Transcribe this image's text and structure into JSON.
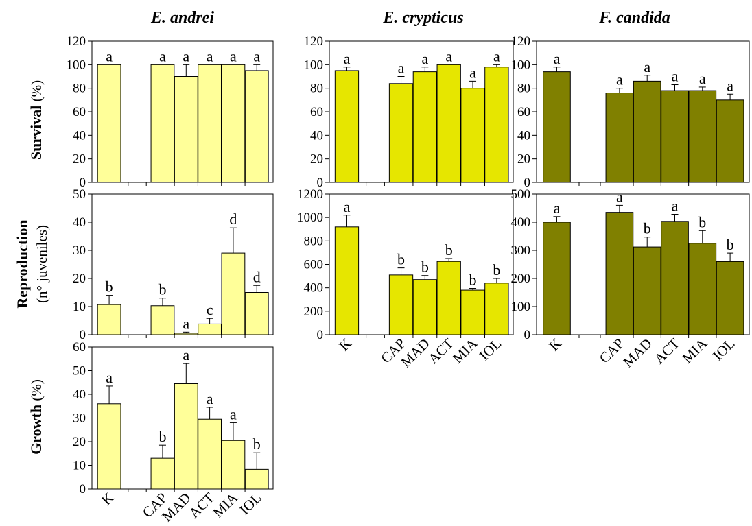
{
  "column_titles": [
    "E. andrei",
    "E. crypticus",
    "F. candida"
  ],
  "row_labels": {
    "survival": {
      "bold": "Survival",
      "normal": " (%)"
    },
    "reproduction": {
      "bold": "Reproduction",
      "normal": "(n° juveniles)"
    },
    "growth": {
      "bold": "Growth",
      "normal": " (%)"
    }
  },
  "chart_data": [
    {
      "id": "andrei-survival",
      "type": "bar",
      "organism": "E. andrei",
      "endpoint": "Survival",
      "categories": [
        "K",
        "CAP",
        "MAD",
        "ACT",
        "MIA",
        "IOL"
      ],
      "values": [
        100,
        100,
        90,
        100,
        100,
        95
      ],
      "errors": [
        0,
        0,
        10,
        0,
        0,
        5
      ],
      "letters": [
        "a",
        "a",
        "a",
        "a",
        "a",
        "a"
      ],
      "ylim": [
        0,
        120
      ],
      "yticks": [
        0,
        20,
        40,
        60,
        80,
        100,
        120
      ],
      "color": "#ffff99"
    },
    {
      "id": "crypticus-survival",
      "type": "bar",
      "organism": "E. crypticus",
      "endpoint": "Survival",
      "categories": [
        "K",
        "CAP",
        "MAD",
        "ACT",
        "MIA",
        "IOL"
      ],
      "values": [
        95,
        84,
        94,
        100,
        80,
        98
      ],
      "errors": [
        3,
        6,
        4,
        0,
        6,
        2
      ],
      "letters": [
        "a",
        "a",
        "a",
        "a",
        "a",
        "a"
      ],
      "ylim": [
        0,
        120
      ],
      "yticks": [
        0,
        20,
        40,
        60,
        80,
        100,
        120
      ],
      "color": "#e6e600"
    },
    {
      "id": "candida-survival",
      "type": "bar",
      "organism": "F. candida",
      "endpoint": "Survival",
      "categories": [
        "K",
        "CAP",
        "MAD",
        "ACT",
        "MIA",
        "IOL"
      ],
      "values": [
        94,
        76,
        86,
        78,
        78,
        70
      ],
      "errors": [
        4,
        4,
        5,
        5,
        3,
        5
      ],
      "letters": [
        "a",
        "a",
        "a",
        "a",
        "a",
        "a"
      ],
      "ylim": [
        0,
        120
      ],
      "yticks": [
        0,
        20,
        40,
        60,
        80,
        100,
        120
      ],
      "color": "#808000"
    },
    {
      "id": "andrei-reproduction",
      "type": "bar",
      "organism": "E. andrei",
      "endpoint": "Reproduction",
      "categories": [
        "K",
        "CAP",
        "MAD",
        "ACT",
        "MIA",
        "IOL"
      ],
      "values": [
        10.7,
        10.3,
        0.5,
        3.8,
        29,
        15
      ],
      "errors": [
        3.3,
        2.7,
        0.4,
        2,
        9,
        2.5
      ],
      "letters": [
        "b",
        "b",
        "a",
        "c",
        "d",
        "d"
      ],
      "ylim": [
        0,
        50
      ],
      "yticks": [
        0,
        10,
        20,
        30,
        40,
        50
      ],
      "color": "#ffff99"
    },
    {
      "id": "crypticus-reproduction",
      "type": "bar",
      "organism": "E. crypticus",
      "endpoint": "Reproduction",
      "categories": [
        "K",
        "CAP",
        "MAD",
        "ACT",
        "MIA",
        "IOL"
      ],
      "values": [
        920,
        510,
        470,
        625,
        380,
        440
      ],
      "errors": [
        100,
        60,
        35,
        25,
        15,
        40
      ],
      "letters": [
        "a",
        "b",
        "b",
        "b",
        "b",
        "b"
      ],
      "ylim": [
        0,
        1200
      ],
      "yticks": [
        0,
        200,
        400,
        600,
        800,
        1000,
        1200
      ],
      "color": "#e6e600"
    },
    {
      "id": "candida-reproduction",
      "type": "bar",
      "organism": "F. candida",
      "endpoint": "Reproduction",
      "categories": [
        "K",
        "CAP",
        "MAD",
        "ACT",
        "MIA",
        "IOL"
      ],
      "values": [
        400,
        435,
        312,
        403,
        325,
        260
      ],
      "errors": [
        20,
        25,
        35,
        25,
        45,
        30
      ],
      "letters": [
        "a",
        "a",
        "b",
        "a",
        "b",
        "b"
      ],
      "ylim": [
        0,
        500
      ],
      "yticks": [
        0,
        100,
        200,
        300,
        400,
        500
      ],
      "color": "#808000"
    },
    {
      "id": "andrei-growth",
      "type": "bar",
      "organism": "E. andrei",
      "endpoint": "Growth",
      "categories": [
        "K",
        "CAP",
        "MAD",
        "ACT",
        "MIA",
        "IOL"
      ],
      "values": [
        36,
        13,
        44.5,
        29.5,
        20.5,
        8.3
      ],
      "errors": [
        7.5,
        5.5,
        8.5,
        5,
        7.5,
        7
      ],
      "letters": [
        "a",
        "b",
        "a",
        "a",
        "a",
        "b"
      ],
      "ylim": [
        0,
        60
      ],
      "yticks": [
        0,
        10,
        20,
        30,
        40,
        50,
        60
      ],
      "color": "#ffff99"
    }
  ]
}
